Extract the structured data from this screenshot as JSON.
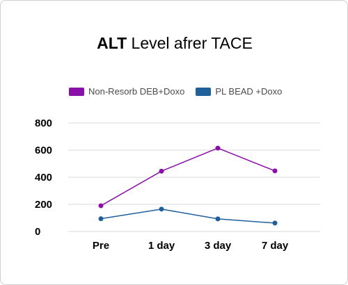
{
  "chart_data": {
    "type": "line",
    "title_bold": "ALT",
    "title_rest": " Level afrer TACE",
    "categories": [
      "Pre",
      "1 day",
      "3 day",
      "7 day"
    ],
    "series": [
      {
        "name": "Non-Resorb DEB+Doxo",
        "color": "#8a0ea8",
        "values": [
          190,
          445,
          615,
          447
        ]
      },
      {
        "name": "PL BEAD +Doxo",
        "color": "#1f5f9a",
        "values": [
          94,
          165,
          93,
          62
        ]
      }
    ],
    "ylim": [
      0,
      800
    ],
    "yticks": [
      "0",
      "200",
      "400",
      "600",
      "800"
    ],
    "grid": true,
    "legend_position": "top-left"
  }
}
